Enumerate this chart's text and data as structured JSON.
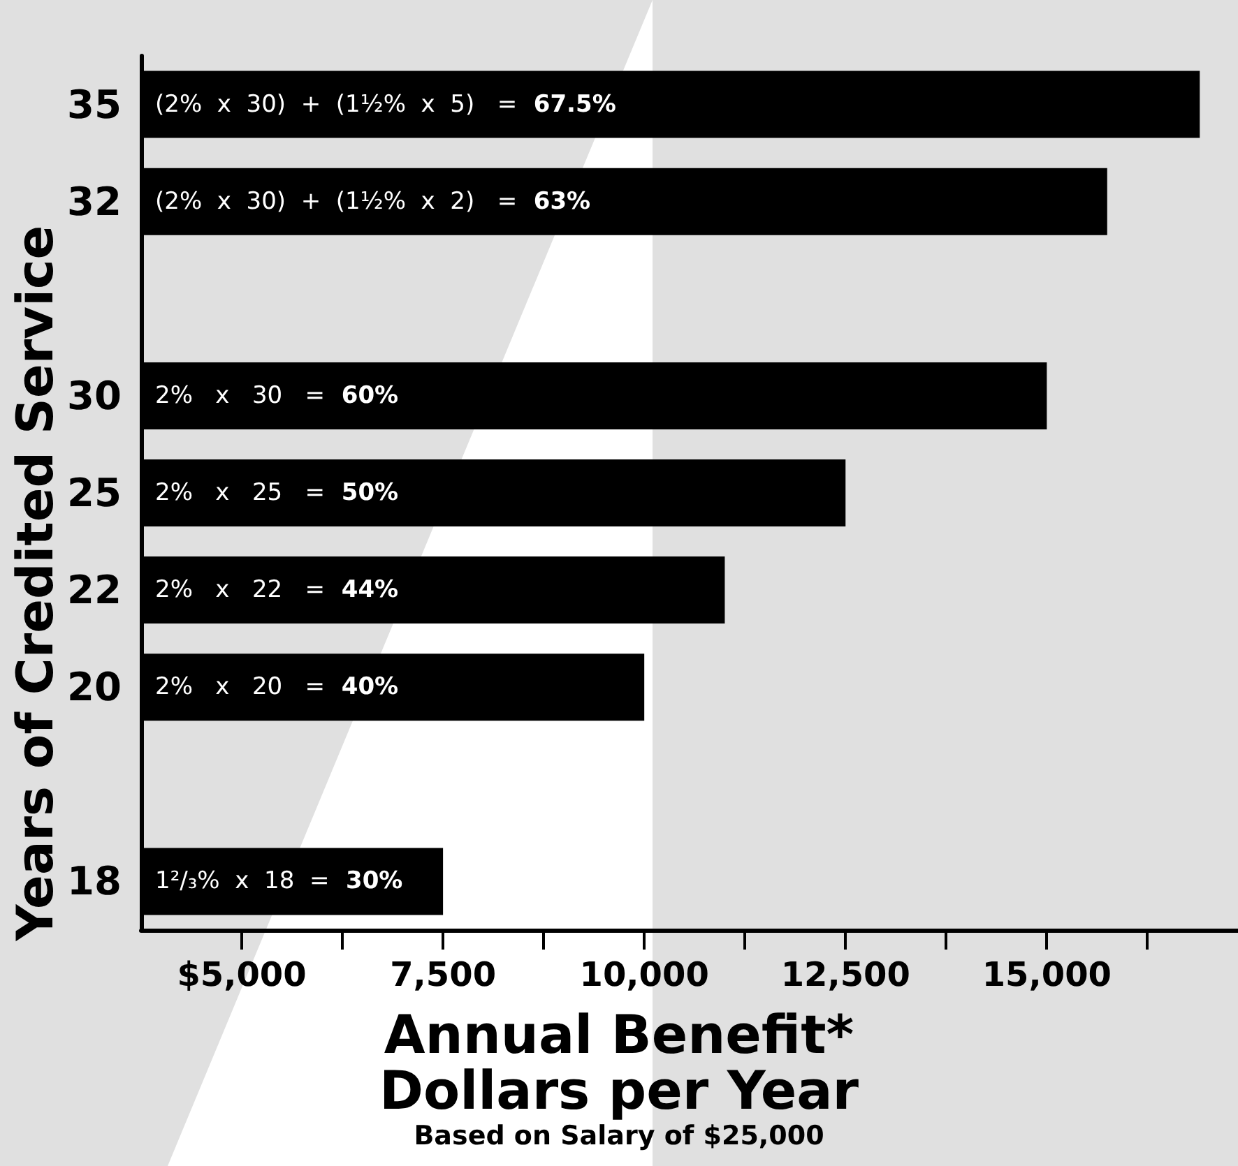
{
  "chart_data": {
    "type": "bar",
    "orientation": "horizontal",
    "ylabel": "Years of Credited Service",
    "xlabel": "Annual Benefit*\nDollars per Year",
    "annotations": [
      "(2%  x  30)  +  (1½%  x  5)   =  67.5%",
      "(2%  x  30)  +  (1½%  x  2)   =  63%",
      "2%   x   30   =  60%",
      "2%   x   25   =  50%",
      "2%   x   22   =  44%",
      "2%   x   20   =  40%",
      "1²/₃%  x  18  =  30%",
      "Based on Salary of $25,000"
    ],
    "categories": [
      "35",
      "32",
      null,
      "30",
      "25",
      "22",
      "20",
      null,
      "18"
    ],
    "values": [
      16900,
      15750,
      null,
      15000,
      12500,
      11000,
      10000,
      null,
      7500
    ],
    "color": "#000000",
    "xlim": [
      3750,
      17375
    ],
    "xticks": [
      {
        "value": 5000,
        "label": "$5,000"
      },
      {
        "value": 6250,
        "label": null
      },
      {
        "value": 7500,
        "label": "7,500"
      },
      {
        "value": 8750,
        "label": null
      },
      {
        "value": 10000,
        "label": "10,000"
      },
      {
        "value": 11250,
        "label": null
      },
      {
        "value": 12500,
        "label": "12,500"
      },
      {
        "value": 13750,
        "label": null
      },
      {
        "value": 15000,
        "label": "15,000"
      },
      {
        "value": 16250,
        "label": null
      }
    ],
    "grid": false
  }
}
